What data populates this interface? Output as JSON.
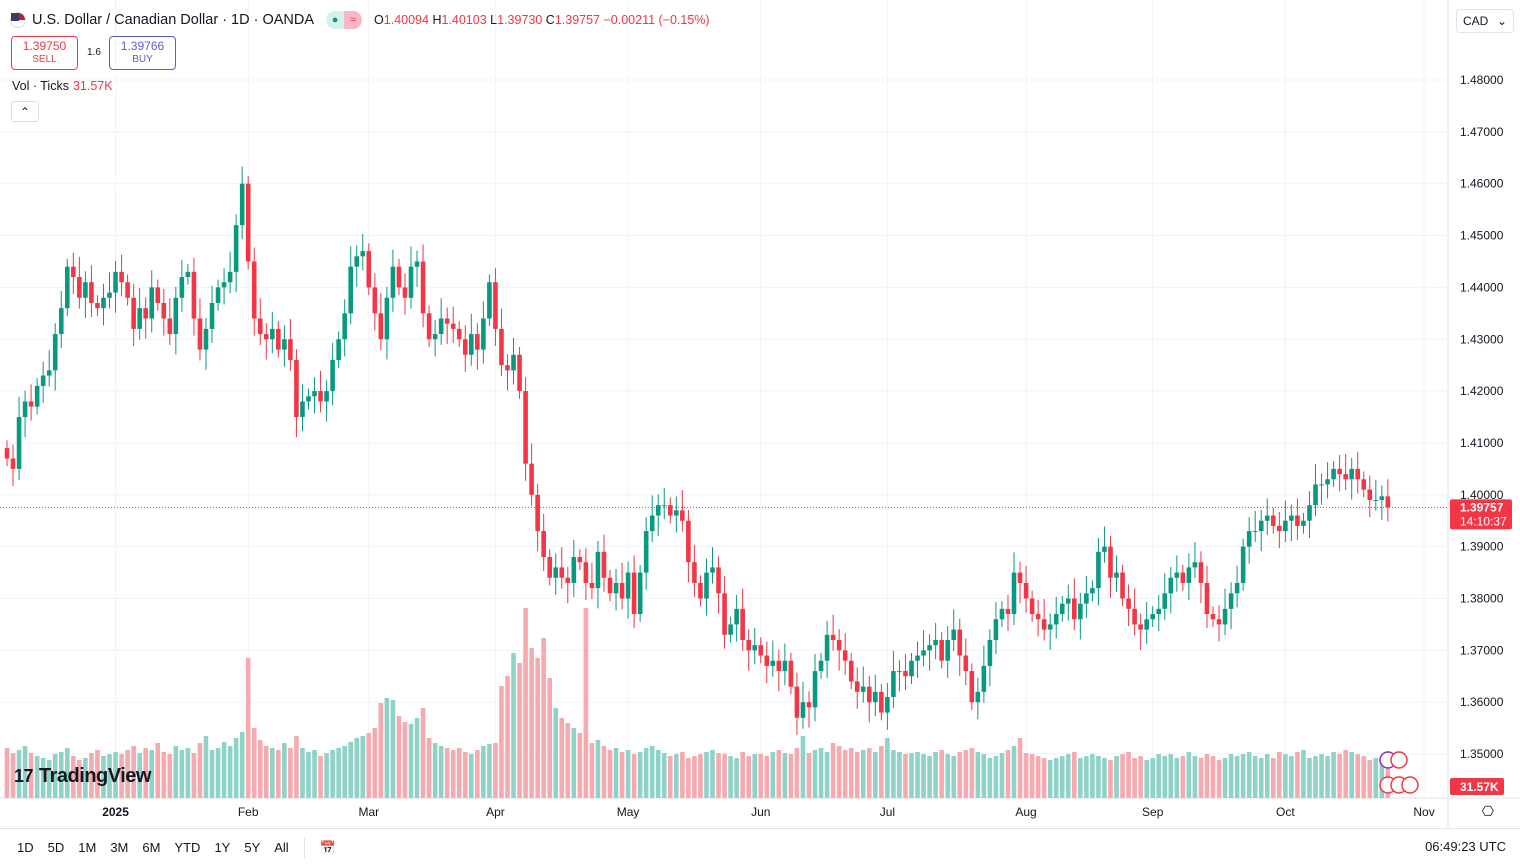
{
  "header": {
    "symbol_title": "U.S. Dollar / Canadian Dollar · 1D · OANDA",
    "open_label": "O",
    "open": "1.40094",
    "high_label": "H",
    "high": "1.40103",
    "low_label": "L",
    "low": "1.39730",
    "close_label": "C",
    "close": "1.39757",
    "change": "−0.00211 (−0.15%)",
    "currency": "CAD"
  },
  "trade": {
    "sell_price": "1.39750",
    "sell_label": "SELL",
    "spread": "1.6",
    "buy_price": "1.39766",
    "buy_label": "BUY"
  },
  "volume_legend": {
    "label": "Vol · Ticks",
    "value": "31.57K"
  },
  "price_marker": {
    "price": "1.39757",
    "countdown": "14:10:37",
    "volume": "31.57K"
  },
  "logo": "TradingView",
  "toolbar": {
    "ranges": [
      "1D",
      "5D",
      "1M",
      "3M",
      "6M",
      "YTD",
      "1Y",
      "5Y",
      "All"
    ],
    "clock": "06:49:23 UTC"
  },
  "colors": {
    "up": "#089981",
    "down": "#f23645",
    "up_vol": "#8fd3c8",
    "down_vol": "#f7a9b0"
  },
  "chart_data": {
    "type": "candlestick",
    "title": "U.S. Dollar / Canadian Dollar · 1D · OANDA",
    "ylim": [
      1.345,
      1.4855
    ],
    "y_ticks": [
      "1.48000",
      "1.47000",
      "1.46000",
      "1.45000",
      "1.44000",
      "1.43000",
      "1.42000",
      "1.41000",
      "1.40000",
      "1.39000",
      "1.38000",
      "1.37000",
      "1.36000",
      "1.35000"
    ],
    "x_labels": [
      {
        "label": "2025",
        "index": 18,
        "bold": true
      },
      {
        "label": "Feb",
        "index": 40
      },
      {
        "label": "Mar",
        "index": 60
      },
      {
        "label": "Apr",
        "index": 81
      },
      {
        "label": "May",
        "index": 103
      },
      {
        "label": "Jun",
        "index": 125
      },
      {
        "label": "Jul",
        "index": 146
      },
      {
        "label": "Aug",
        "index": 169
      },
      {
        "label": "Sep",
        "index": 190
      },
      {
        "label": "Oct",
        "index": 212
      },
      {
        "label": "Nov",
        "index": 235
      }
    ],
    "closes": [
      1.407,
      1.405,
      1.415,
      1.418,
      1.417,
      1.421,
      1.423,
      1.424,
      1.431,
      1.436,
      1.444,
      1.442,
      1.438,
      1.441,
      1.437,
      1.436,
      1.438,
      1.439,
      1.443,
      1.441,
      1.438,
      1.432,
      1.436,
      1.434,
      1.44,
      1.437,
      1.434,
      1.431,
      1.438,
      1.442,
      1.443,
      1.434,
      1.428,
      1.432,
      1.437,
      1.44,
      1.441,
      1.443,
      1.452,
      1.46,
      1.445,
      1.434,
      1.431,
      1.43,
      1.432,
      1.428,
      1.43,
      1.426,
      1.415,
      1.418,
      1.419,
      1.42,
      1.418,
      1.42,
      1.426,
      1.43,
      1.435,
      1.444,
      1.446,
      1.447,
      1.44,
      1.435,
      1.43,
      1.438,
      1.444,
      1.44,
      1.438,
      1.444,
      1.445,
      1.435,
      1.43,
      1.431,
      1.434,
      1.433,
      1.432,
      1.43,
      1.427,
      1.431,
      1.428,
      1.434,
      1.441,
      1.432,
      1.425,
      1.424,
      1.427,
      1.42,
      1.406,
      1.4,
      1.393,
      1.388,
      1.384,
      1.386,
      1.384,
      1.383,
      1.388,
      1.387,
      1.383,
      1.382,
      1.389,
      1.384,
      1.381,
      1.383,
      1.38,
      1.385,
      1.377,
      1.385,
      1.393,
      1.396,
      1.398,
      1.398,
      1.396,
      1.397,
      1.395,
      1.387,
      1.383,
      1.38,
      1.385,
      1.386,
      1.381,
      1.373,
      1.375,
      1.378,
      1.372,
      1.37,
      1.371,
      1.369,
      1.367,
      1.368,
      1.366,
      1.368,
      1.363,
      1.357,
      1.36,
      1.359,
      1.366,
      1.368,
      1.373,
      1.372,
      1.37,
      1.368,
      1.364,
      1.362,
      1.363,
      1.36,
      1.362,
      1.358,
      1.361,
      1.366,
      1.366,
      1.365,
      1.368,
      1.369,
      1.37,
      1.371,
      1.372,
      1.368,
      1.372,
      1.374,
      1.369,
      1.366,
      1.36,
      1.362,
      1.367,
      1.372,
      1.376,
      1.378,
      1.377,
      1.385,
      1.383,
      1.38,
      1.377,
      1.376,
      1.374,
      1.375,
      1.377,
      1.379,
      1.38,
      1.376,
      1.379,
      1.381,
      1.382,
      1.389,
      1.39,
      1.384,
      1.385,
      1.38,
      1.378,
      1.375,
      1.374,
      1.376,
      1.377,
      1.378,
      1.381,
      1.384,
      1.385,
      1.383,
      1.386,
      1.387,
      1.383,
      1.377,
      1.376,
      1.375,
      1.378,
      1.381,
      1.383,
      1.39,
      1.393,
      1.393,
      1.395,
      1.396,
      1.394,
      1.393,
      1.395,
      1.396,
      1.394,
      1.395,
      1.398,
      1.402,
      1.402,
      1.403,
      1.405,
      1.404,
      1.403,
      1.405,
      1.403,
      1.401,
      1.399,
      1.399,
      1.3997,
      1.39757
    ],
    "volume_k": [
      50,
      45,
      48,
      52,
      45,
      42,
      40,
      38,
      44,
      46,
      50,
      42,
      38,
      40,
      45,
      48,
      42,
      44,
      46,
      44,
      48,
      52,
      45,
      50,
      48,
      55,
      46,
      44,
      52,
      48,
      50,
      45,
      55,
      62,
      48,
      50,
      56,
      52,
      60,
      66,
      140,
      70,
      58,
      52,
      50,
      48,
      55,
      50,
      62,
      50,
      46,
      48,
      42,
      45,
      48,
      50,
      52,
      56,
      60,
      62,
      65,
      70,
      95,
      100,
      98,
      82,
      76,
      74,
      80,
      90,
      60,
      55,
      52,
      50,
      48,
      50,
      46,
      44,
      48,
      52,
      54,
      55,
      112,
      122,
      145,
      135,
      190,
      150,
      140,
      160,
      120,
      90,
      80,
      75,
      70,
      65,
      190,
      55,
      58,
      52,
      48,
      50,
      46,
      48,
      44,
      46,
      50,
      52,
      48,
      45,
      42,
      44,
      46,
      40,
      42,
      44,
      46,
      48,
      45,
      44,
      42,
      40,
      46,
      42,
      44,
      44,
      42,
      46,
      48,
      45,
      44,
      50,
      62,
      45,
      48,
      50,
      46,
      55,
      52,
      48,
      50,
      46,
      48,
      50,
      46,
      52,
      60,
      48,
      46,
      44,
      45,
      46,
      44,
      42,
      46,
      48,
      44,
      42,
      46,
      48,
      50,
      46,
      44,
      40,
      42,
      45,
      48,
      52,
      60,
      45,
      44,
      42,
      40,
      38,
      40,
      42,
      44,
      46,
      40,
      42,
      44,
      42,
      40,
      38,
      42,
      44,
      46,
      40,
      42,
      38,
      40,
      44,
      42,
      44,
      40,
      42,
      46,
      42,
      40,
      44,
      42,
      38,
      40,
      44,
      42,
      44,
      46,
      42,
      40,
      44,
      40,
      46,
      44,
      42,
      46,
      48,
      40,
      42,
      44,
      42,
      46,
      44,
      48,
      46,
      44,
      42,
      38,
      40,
      36,
      32
    ]
  }
}
